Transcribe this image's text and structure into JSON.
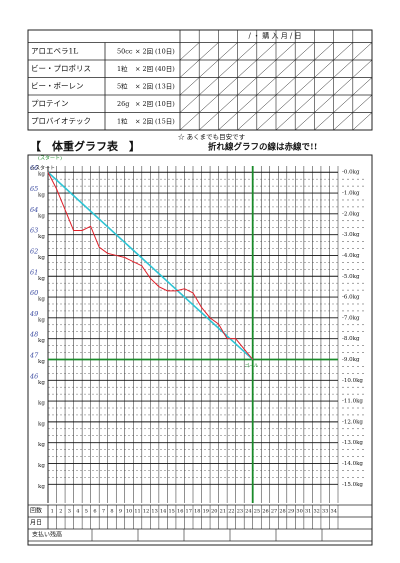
{
  "header": {
    "purchase_label": "/ ・ 購 入 月 / 日",
    "note": "☆ あくまでも目安です"
  },
  "products": [
    [
      "アロエベラ1L",
      "50cc",
      "× 2回",
      "(10日)"
    ],
    [
      "ビー・プロポリス",
      "1粒",
      "× 2回",
      "(40日)"
    ],
    [
      "ビー・ポーレン",
      "5粒",
      "× 2回",
      "(13日)"
    ],
    [
      "プロテイン",
      "26g",
      "× 2回",
      "(10日)"
    ],
    [
      "プロバイオテック",
      "1粒",
      "× 2回",
      "(15日)"
    ]
  ],
  "graph": {
    "title": "【　体重グラフ表　】",
    "instruction": "折れ線グラフの線は赤線で!!",
    "start_label": "☆スタート",
    "start_note": "(スタート)",
    "goal_note": "ゴール",
    "unit": "kg",
    "handwritten_weights": [
      "66",
      "65",
      "64",
      "63",
      "62",
      "61",
      "60",
      "49",
      "48",
      "47",
      "46"
    ],
    "ylim": [
      0.3,
      -15.9
    ],
    "yticks": [
      {
        "value": 0,
        "label": "-0.0kg"
      },
      {
        "value": -1,
        "label": "-1.0kg"
      },
      {
        "value": -2,
        "label": "-2.0kg"
      },
      {
        "value": -3,
        "label": "-3.0kg"
      },
      {
        "value": -4,
        "label": "-4.0kg"
      },
      {
        "value": -5,
        "label": "-5.0kg"
      },
      {
        "value": -6,
        "label": "-6.0kg"
      },
      {
        "value": -7,
        "label": "-7.0kg"
      },
      {
        "value": -8,
        "label": "-8.0kg"
      },
      {
        "value": -9,
        "label": "-9.0kg"
      },
      {
        "value": -10,
        "label": "-10.0kg"
      },
      {
        "value": -11,
        "label": "-11.0kg"
      },
      {
        "value": -12,
        "label": "-12.0kg"
      },
      {
        "value": -13,
        "label": "-13.0kg"
      },
      {
        "value": -14,
        "label": "-14.0kg"
      },
      {
        "value": -15,
        "label": "-15.0kg"
      }
    ],
    "count_label": "回数",
    "date_label": "月日",
    "balance_label": "支払い残高",
    "day_numbers": [
      1,
      2,
      3,
      4,
      5,
      6,
      7,
      8,
      9,
      10,
      11,
      12,
      13,
      14,
      15,
      16,
      17,
      18,
      19,
      20,
      21,
      22,
      23,
      24,
      25,
      26,
      27,
      28,
      29,
      30,
      31,
      32,
      33,
      34
    ],
    "goal": {
      "day": 25,
      "kg": -9
    },
    "record": {
      "color": "#e0202a",
      "days": [
        1,
        2,
        3,
        4,
        5,
        6,
        7,
        8,
        9,
        10,
        11,
        12,
        13,
        14,
        15,
        16,
        17,
        18,
        19,
        20,
        21,
        22,
        23,
        24,
        25
      ],
      "values": [
        0,
        -0.8,
        -1.8,
        -2.8,
        -2.8,
        -2.6,
        -3.6,
        -3.9,
        -4.0,
        -4.1,
        -4.3,
        -4.5,
        -5.1,
        -5.5,
        -5.7,
        -5.7,
        -5.6,
        -5.8,
        -6.5,
        -7.0,
        -7.3,
        -8.0,
        -8.0,
        -8.5,
        -9.0
      ]
    },
    "plan_color": "#2ec4d4",
    "goal_color": "#1a8a2a"
  }
}
